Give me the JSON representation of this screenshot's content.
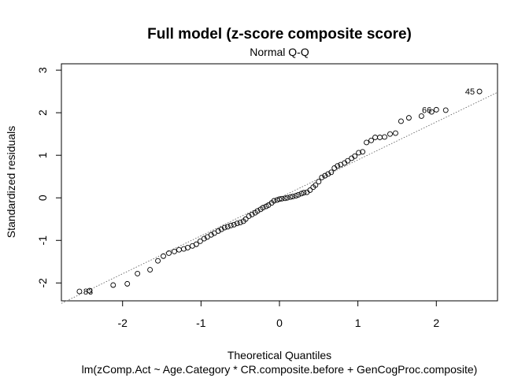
{
  "chart_data": {
    "type": "scatter",
    "title": "Full model (z-score composite score)",
    "subtitle": "Normal Q-Q",
    "xlabel": "Theoretical Quantiles",
    "ylabel": "Standardized residuals",
    "caption": "lm(zComp.Act ~ Age.Category * CR.composite.before + GenCogProc.composite)",
    "xlim": [
      -2.78,
      2.78
    ],
    "ylim": [
      -2.42,
      3.15
    ],
    "x_ticks": [
      -2,
      -1,
      0,
      1,
      2
    ],
    "x_tick_labels": [
      "-2",
      "-1",
      "0",
      "1",
      "2"
    ],
    "y_ticks": [
      -2,
      -1,
      0,
      1,
      2,
      3
    ],
    "y_tick_labels": [
      "-2",
      "-1",
      "0",
      "1",
      "2",
      "3"
    ],
    "reference_line": {
      "style": "dotted",
      "points": [
        [
          -2.78,
          -2.48
        ],
        [
          2.78,
          2.48
        ]
      ]
    },
    "grid": false,
    "marker": "open-circle",
    "point_labels": [
      {
        "label": "45",
        "x": 2.55,
        "y": 2.5
      },
      {
        "label": "66",
        "x": 2.0,
        "y": 2.07
      },
      {
        "label": "83",
        "x": -2.55,
        "y": -2.2
      }
    ],
    "points": [
      {
        "x": -2.55,
        "y": -2.2
      },
      {
        "x": -2.42,
        "y": -2.18
      },
      {
        "x": -2.12,
        "y": -2.05
      },
      {
        "x": -1.94,
        "y": -2.02
      },
      {
        "x": -1.81,
        "y": -1.78
      },
      {
        "x": -1.65,
        "y": -1.69
      },
      {
        "x": -1.55,
        "y": -1.48
      },
      {
        "x": -1.48,
        "y": -1.37
      },
      {
        "x": -1.41,
        "y": -1.3
      },
      {
        "x": -1.34,
        "y": -1.26
      },
      {
        "x": -1.28,
        "y": -1.22
      },
      {
        "x": -1.22,
        "y": -1.2
      },
      {
        "x": -1.17,
        "y": -1.17
      },
      {
        "x": -1.11,
        "y": -1.13
      },
      {
        "x": -1.06,
        "y": -1.09
      },
      {
        "x": -1.01,
        "y": -1.02
      },
      {
        "x": -0.96,
        "y": -0.96
      },
      {
        "x": -0.92,
        "y": -0.92
      },
      {
        "x": -0.87,
        "y": -0.87
      },
      {
        "x": -0.83,
        "y": -0.83
      },
      {
        "x": -0.78,
        "y": -0.78
      },
      {
        "x": -0.74,
        "y": -0.74
      },
      {
        "x": -0.7,
        "y": -0.7
      },
      {
        "x": -0.66,
        "y": -0.68
      },
      {
        "x": -0.62,
        "y": -0.65
      },
      {
        "x": -0.58,
        "y": -0.63
      },
      {
        "x": -0.54,
        "y": -0.6
      },
      {
        "x": -0.5,
        "y": -0.58
      },
      {
        "x": -0.46,
        "y": -0.55
      },
      {
        "x": -0.43,
        "y": -0.5
      },
      {
        "x": -0.39,
        "y": -0.43
      },
      {
        "x": -0.35,
        "y": -0.39
      },
      {
        "x": -0.31,
        "y": -0.35
      },
      {
        "x": -0.28,
        "y": -0.31
      },
      {
        "x": -0.24,
        "y": -0.27
      },
      {
        "x": -0.21,
        "y": -0.23
      },
      {
        "x": -0.17,
        "y": -0.2
      },
      {
        "x": -0.14,
        "y": -0.17
      },
      {
        "x": -0.1,
        "y": -0.12
      },
      {
        "x": -0.07,
        "y": -0.07
      },
      {
        "x": -0.03,
        "y": -0.05
      },
      {
        "x": 0.0,
        "y": -0.03
      },
      {
        "x": 0.03,
        "y": -0.02
      },
      {
        "x": 0.07,
        "y": -0.01
      },
      {
        "x": 0.1,
        "y": 0.0
      },
      {
        "x": 0.14,
        "y": 0.02
      },
      {
        "x": 0.17,
        "y": 0.03
      },
      {
        "x": 0.21,
        "y": 0.05
      },
      {
        "x": 0.24,
        "y": 0.07
      },
      {
        "x": 0.28,
        "y": 0.1
      },
      {
        "x": 0.31,
        "y": 0.12
      },
      {
        "x": 0.35,
        "y": 0.13
      },
      {
        "x": 0.39,
        "y": 0.18
      },
      {
        "x": 0.43,
        "y": 0.25
      },
      {
        "x": 0.46,
        "y": 0.3
      },
      {
        "x": 0.5,
        "y": 0.38
      },
      {
        "x": 0.54,
        "y": 0.48
      },
      {
        "x": 0.58,
        "y": 0.52
      },
      {
        "x": 0.62,
        "y": 0.56
      },
      {
        "x": 0.66,
        "y": 0.6
      },
      {
        "x": 0.7,
        "y": 0.7
      },
      {
        "x": 0.74,
        "y": 0.75
      },
      {
        "x": 0.78,
        "y": 0.78
      },
      {
        "x": 0.83,
        "y": 0.82
      },
      {
        "x": 0.87,
        "y": 0.87
      },
      {
        "x": 0.92,
        "y": 0.93
      },
      {
        "x": 0.96,
        "y": 0.98
      },
      {
        "x": 1.01,
        "y": 1.06
      },
      {
        "x": 1.06,
        "y": 1.08
      },
      {
        "x": 1.11,
        "y": 1.3
      },
      {
        "x": 1.17,
        "y": 1.35
      },
      {
        "x": 1.22,
        "y": 1.42
      },
      {
        "x": 1.28,
        "y": 1.42
      },
      {
        "x": 1.34,
        "y": 1.43
      },
      {
        "x": 1.41,
        "y": 1.5
      },
      {
        "x": 1.48,
        "y": 1.52
      },
      {
        "x": 1.55,
        "y": 1.8
      },
      {
        "x": 1.65,
        "y": 1.88
      },
      {
        "x": 1.81,
        "y": 1.92
      },
      {
        "x": 1.94,
        "y": 2.02
      },
      {
        "x": 2.0,
        "y": 2.07
      },
      {
        "x": 2.12,
        "y": 2.06
      },
      {
        "x": 2.55,
        "y": 2.5
      }
    ]
  }
}
